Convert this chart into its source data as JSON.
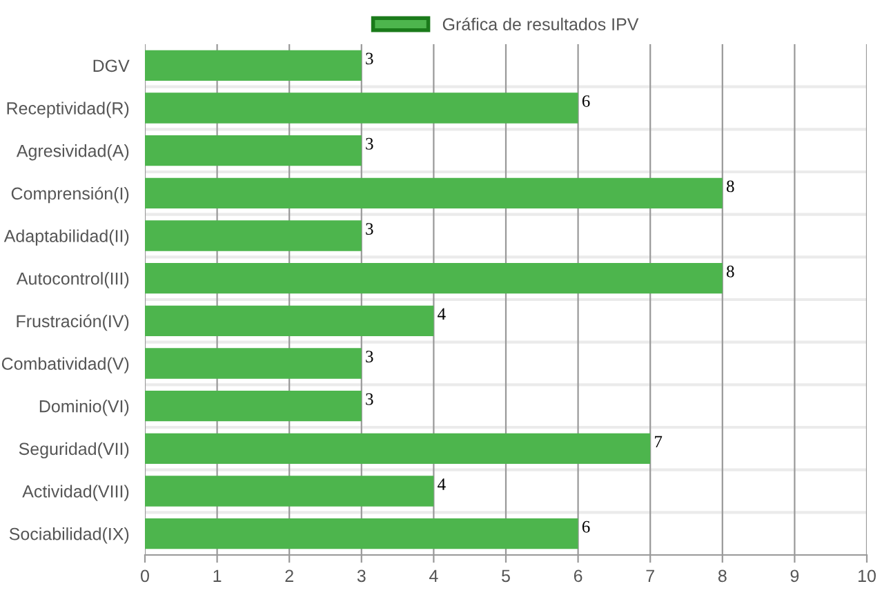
{
  "chart_data": {
    "type": "bar",
    "orientation": "horizontal",
    "categories": [
      "DGV",
      "Receptividad(R)",
      "Agresividad(A)",
      "Comprensión(I)",
      "Adaptabilidad(II)",
      "Autocontrol(III)",
      "Frustración(IV)",
      "Combatividad(V)",
      "Dominio(VI)",
      "Seguridad(VII)",
      "Actividad(VIII)",
      "Sociabilidad(IX)"
    ],
    "series": [
      {
        "name": "Gráfica de resultados IPV",
        "color": "#4db54d",
        "values": [
          3,
          6,
          3,
          8,
          3,
          8,
          4,
          3,
          3,
          7,
          4,
          6
        ]
      }
    ],
    "xlim": [
      0,
      10
    ],
    "xticks": [
      0,
      1,
      2,
      3,
      4,
      5,
      6,
      7,
      8,
      9,
      10
    ],
    "grid": "x",
    "legend": "top",
    "data_labels": true
  }
}
